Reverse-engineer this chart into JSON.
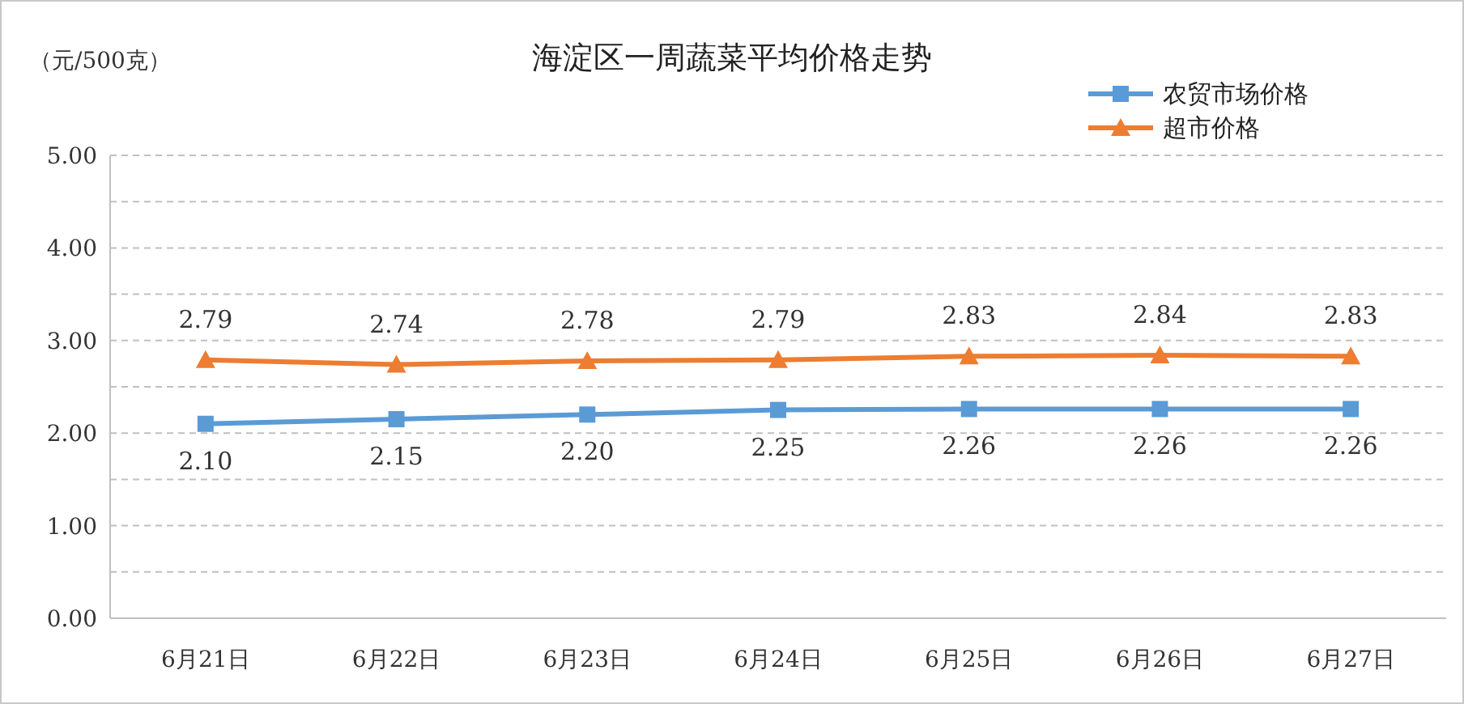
{
  "chart_data": {
    "type": "line",
    "title": "海淀区一周蔬菜平均价格走势",
    "ylabel": "（元/500克）",
    "categories": [
      "6月21日",
      "6月22日",
      "6月23日",
      "6月24日",
      "6月25日",
      "6月26日",
      "6月27日"
    ],
    "series": [
      {
        "name": "农贸市场价格",
        "color": "#5b9bd5",
        "marker": "square",
        "values": [
          2.1,
          2.15,
          2.2,
          2.25,
          2.26,
          2.26,
          2.26
        ],
        "value_labels": [
          "2.10",
          "2.15",
          "2.20",
          "2.25",
          "2.26",
          "2.26",
          "2.26"
        ]
      },
      {
        "name": "超市价格",
        "color": "#ed7d31",
        "marker": "triangle",
        "values": [
          2.79,
          2.74,
          2.78,
          2.79,
          2.83,
          2.84,
          2.83
        ],
        "value_labels": [
          "2.79",
          "2.74",
          "2.78",
          "2.79",
          "2.83",
          "2.84",
          "2.83"
        ]
      }
    ],
    "ylim": [
      0,
      5
    ],
    "yticks": [
      {
        "value": 0,
        "label": "0.00"
      },
      {
        "value": 0.5,
        "label": null
      },
      {
        "value": 1,
        "label": "1.00"
      },
      {
        "value": 1.5,
        "label": null
      },
      {
        "value": 2,
        "label": "2.00"
      },
      {
        "value": 2.5,
        "label": null
      },
      {
        "value": 3,
        "label": "3.00"
      },
      {
        "value": 3.5,
        "label": null
      },
      {
        "value": 4,
        "label": "4.00"
      },
      {
        "value": 4.5,
        "label": null
      },
      {
        "value": 5,
        "label": "5.00"
      }
    ],
    "grid": "y",
    "legend": "top right",
    "line_style": "solid"
  }
}
